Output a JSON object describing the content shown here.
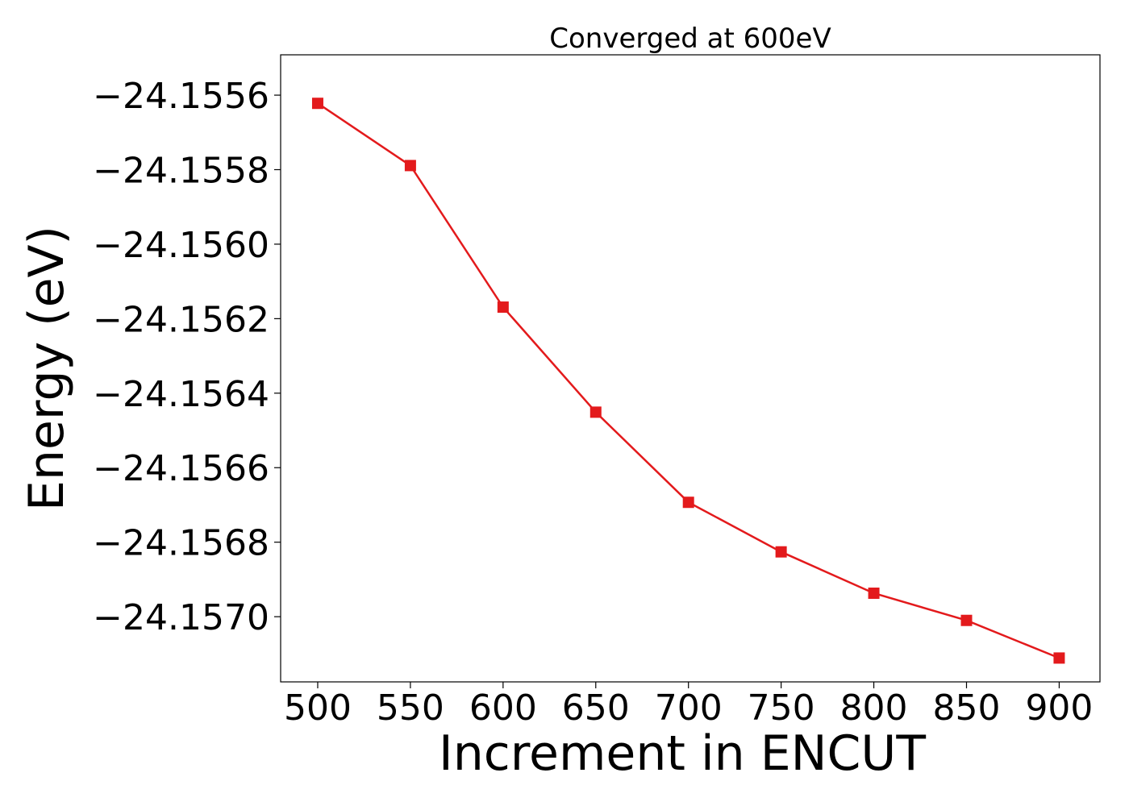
{
  "chart_data": {
    "type": "line",
    "title": "Converged at 600eV",
    "xlabel": "Increment in ENCUT",
    "ylabel": "Energy (eV)",
    "xlim": [
      480,
      922
    ],
    "ylim": [
      -24.157175,
      -24.1554917
    ],
    "x_ticks": [
      500,
      550,
      600,
      650,
      700,
      750,
      800,
      850,
      900
    ],
    "y_ticks": [
      -24.1556,
      -24.1558,
      -24.156,
      -24.1562,
      -24.1564,
      -24.1566,
      -24.1568,
      -24.157
    ],
    "y_tick_labels": [
      "−24.1556",
      "−24.1558",
      "−24.1560",
      "−24.1562",
      "−24.1564",
      "−24.1566",
      "−24.1568",
      "−24.1570"
    ],
    "grid": false,
    "series": [
      {
        "color": "#e31a1c",
        "marker": "square",
        "x": [
          500,
          550,
          600,
          650,
          700,
          750,
          800,
          850,
          900
        ],
        "y": [
          -24.155622,
          -24.155789,
          -24.156169,
          -24.156451,
          -24.156693,
          -24.156826,
          -24.156937,
          -24.15701,
          -24.157111
        ]
      }
    ]
  }
}
